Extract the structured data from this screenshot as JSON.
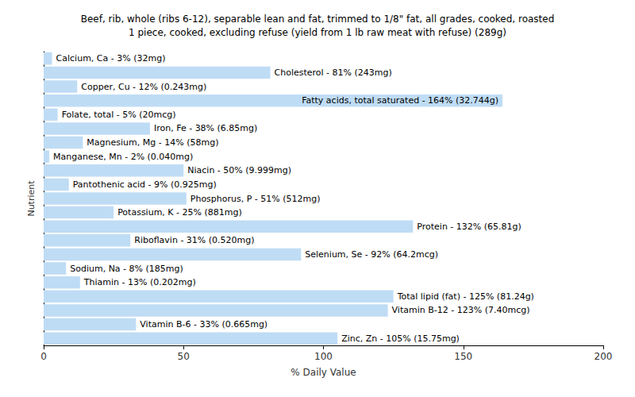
{
  "chart_data": {
    "type": "bar",
    "title": "Beef, rib, whole (ribs 6-12), separable lean and fat, trimmed to 1/8\" fat, all grades, cooked, roasted\n1 piece, cooked, excluding refuse (yield from 1 lb raw meat with refuse) (289g)",
    "x_label": "% Daily Value",
    "y_label": "Nutrient",
    "categories": [
      "Calcium, Ca - 3% (32mg)",
      "Cholesterol - 81% (243mg)",
      "Copper, Cu - 12% (0.243mg)",
      "Fatty acids, total saturated - 164% (32.744g)",
      "Folate, total - 5% (20mcg)",
      "Iron, Fe - 38% (6.85mg)",
      "Magnesium, Mg - 14% (58mg)",
      "Manganese, Mn - 2% (0.040mg)",
      "Niacin - 50% (9.999mg)",
      "Pantothenic acid - 9% (0.925mg)",
      "Phosphorus, P - 51% (512mg)",
      "Potassium, K - 25% (881mg)",
      "Protein - 132% (65.81g)",
      "Riboflavin - 31% (0.520mg)",
      "Selenium, Se - 92% (64.2mcg)",
      "Sodium, Na - 8% (185mg)",
      "Thiamin - 13% (0.202mg)",
      "Total lipid (fat) - 125% (81.24g)",
      "Vitamin B-12 - 123% (7.40mcg)",
      "Vitamin B-6 - 33% (0.665mg)",
      "Zinc, Zn - 105% (15.75mg)"
    ],
    "values": [
      3,
      81,
      12,
      164,
      5,
      38,
      14,
      2,
      50,
      9,
      51,
      25,
      132,
      31,
      92,
      8,
      13,
      125,
      123,
      33,
      105
    ],
    "color": "#bfdcf5",
    "orientation": "horizontal",
    "xlim": [
      0,
      200
    ],
    "xticks": [
      0,
      50,
      100,
      150,
      200
    ],
    "grid": false,
    "tick_labels": "x"
  }
}
